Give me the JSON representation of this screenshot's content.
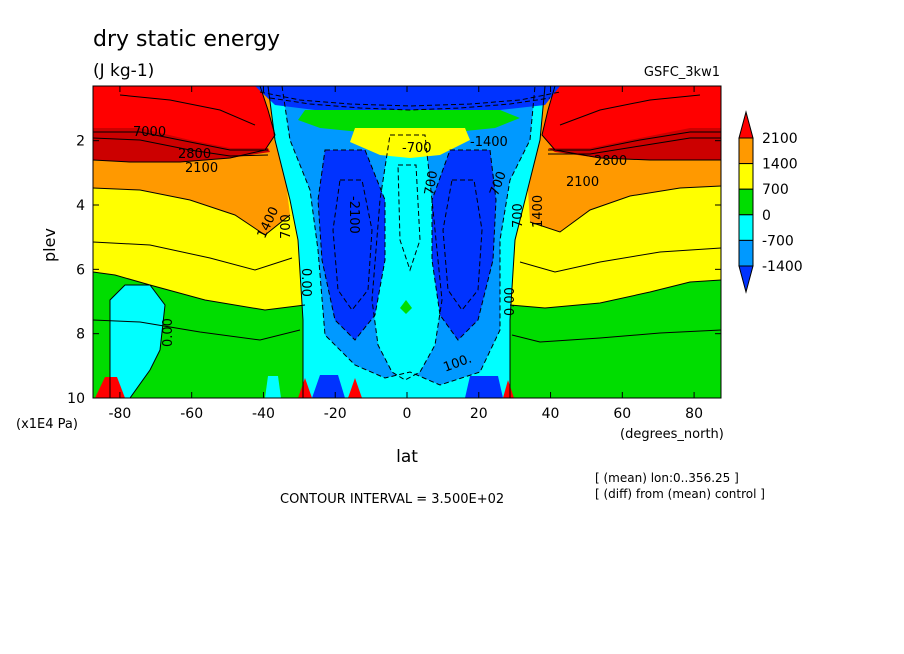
{
  "chart_data": {
    "type": "heatmap",
    "title": "dry static energy",
    "units": "(J kg-1)",
    "model_label": "GSFC_3kw1",
    "xlabel": "lat",
    "x_units": "(degrees_north)",
    "ylabel": "plev",
    "y_units": "(x1E4 Pa)",
    "x_ticks": [
      "-80",
      "-60",
      "-40",
      "-20",
      "0",
      "20",
      "40",
      "60",
      "80"
    ],
    "y_ticks": [
      "2",
      "4",
      "6",
      "8",
      "10"
    ],
    "xlim": [
      -87.5,
      87.5
    ],
    "ylim": [
      10,
      0.3
    ],
    "legend": {
      "position": "right",
      "labels": [
        "2100",
        "1400",
        "700",
        "0",
        "-700",
        "-1400"
      ],
      "colors": [
        "#ff0000",
        "#ff9900",
        "#ffff00",
        "#00dd00",
        "#00ffff",
        "#0099ff",
        "#0033ff"
      ]
    },
    "contour_interval": "CONTOUR INTERVAL = 3.500E+02",
    "notes": [
      "[ (mean) lon:0..356.25 ]",
      "[ (diff) from (mean) control ]"
    ],
    "contour_labels": [
      "7000",
      "2800",
      "2100",
      "1400",
      "700",
      "0.00",
      "-700",
      "-2100",
      "100.",
      "-1400",
      "2800",
      "2100",
      "1400",
      "700",
      "0.00",
      "700",
      "0.00",
      "700"
    ]
  }
}
